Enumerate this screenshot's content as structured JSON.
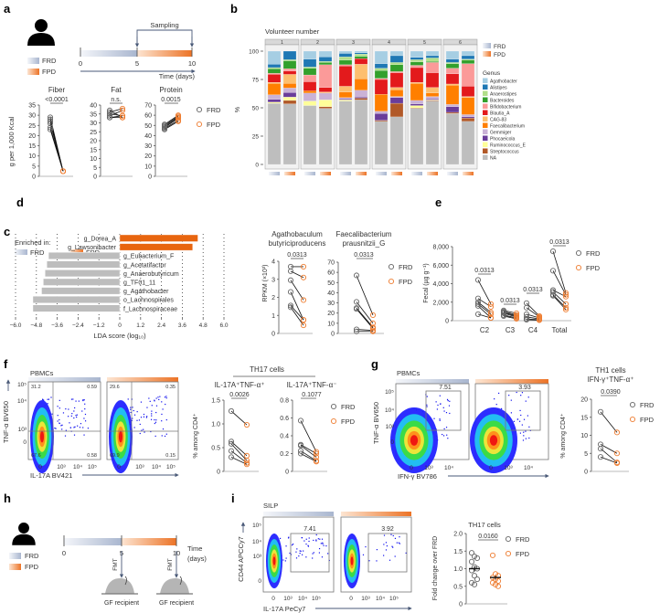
{
  "panel_labels": {
    "a": "a",
    "b": "b",
    "c": "c",
    "d": "d",
    "e": "e",
    "f": "f",
    "g": "g",
    "h": "h",
    "i": "i"
  },
  "legend": {
    "frd": "FRD",
    "fpd": "FPD"
  },
  "colors": {
    "frd_point": "#666666",
    "fpd_point": "#ee7d31",
    "fpd_bar": "#e8650f",
    "frd_bar": "#bdbdbd",
    "axis": "#555555",
    "genus": {
      "Agathobacter": "#a6cee3",
      "Alistipes": "#1f78b4",
      "Anaerostipes": "#b2df8a",
      "Bacteroides": "#33a02c",
      "Bifidobacterium": "#fb9a99",
      "Blautia_A": "#e31a1c",
      "CAG-83": "#fdbf6f",
      "Faecalibacterium": "#ff7f00",
      "Gemmiger": "#cab2d6",
      "Phocaeicola": "#6a3d9a",
      "Ruminococcus_E": "#ffff99",
      "Streptococcus": "#b15928",
      "NA": "#bebebe"
    }
  },
  "panel_a": {
    "sampling": "Sampling",
    "ticks": [
      "0",
      "5",
      "10"
    ],
    "time_label": "Time (days)",
    "ylabel": "g per 1,000 Kcal"
  },
  "panel_c": {
    "enriched_in": "Enriched in:"
  },
  "panel_f": {
    "sample": "PBMCs",
    "xlabel": "IL-17A BV421",
    "ylabel": "TNF-α BV650",
    "xticks": [
      "0",
      "10³",
      "10⁴",
      "10⁵"
    ],
    "yticks": [
      "10⁵",
      "10⁴",
      "10³",
      "0"
    ],
    "frd_quadrants": [
      "31.2",
      "0.59",
      "67.6",
      "0.58"
    ],
    "fpd_quadrants": [
      "29.6",
      "0.35",
      "69.9",
      "0.15"
    ],
    "group_title": "TH17 cells",
    "ylabel_right": "% among CD4⁺"
  },
  "panel_g": {
    "sample": "PBMCs",
    "xlabel": "IFN-γ BV786",
    "ylabel": "TNF-α BV650",
    "xticks": [
      "0",
      "10³",
      "10⁴"
    ],
    "yticks": [
      "10⁵",
      "10⁴",
      "10³",
      "0"
    ],
    "frd_gate": "7.51",
    "fpd_gate": "3.93",
    "ylabel_right": "% among CD4⁺"
  },
  "panel_h": {
    "ticks": [
      "0",
      "5",
      "10"
    ],
    "time_label_1": "Time",
    "time_label_2": "(days)",
    "fmt": "FMT",
    "recipient": "GF recipient"
  },
  "panel_i": {
    "sample": "SILP",
    "xlabel": "IL-17A PeCy7",
    "ylabel": "CD44 APCCy7",
    "xticks": [
      "0",
      "10³",
      "10⁴",
      "10⁵"
    ],
    "yticks": [
      "10⁵",
      "10⁴",
      "10³",
      "0"
    ],
    "frd_gate": "7.41",
    "fpd_gate": "3.92",
    "ylabel_right": "Fold change over FRD"
  },
  "chart_data": [
    {
      "type": "paired-dot",
      "title": [
        "Fiber"
      ],
      "p": "<0.0001",
      "ylim": [
        0,
        35
      ],
      "yticks": [
        0,
        5,
        10,
        15,
        20,
        25,
        30,
        35
      ],
      "ytick_labels": [
        "0",
        "5",
        "10",
        "15",
        "20",
        "25",
        "30",
        "35"
      ],
      "frd": [
        29,
        28,
        27,
        26,
        24,
        23
      ],
      "fpd": [
        2.5,
        2.5,
        2.5,
        2.5,
        2.5,
        2.5
      ]
    },
    {
      "type": "paired-dot",
      "title": [
        "Fat"
      ],
      "p": "n.s.",
      "ylim": [
        0,
        40
      ],
      "yticks": [
        0,
        5,
        10,
        15,
        20,
        25,
        30,
        35,
        40
      ],
      "ytick_labels": [
        "0",
        "5",
        "10",
        "15",
        "20",
        "25",
        "30",
        "35",
        "40"
      ],
      "frd": [
        37,
        36,
        35,
        34,
        33,
        33
      ],
      "fpd": [
        33,
        38,
        34,
        37,
        34,
        33
      ]
    },
    {
      "type": "paired-dot",
      "title": [
        "Protein"
      ],
      "p": "0.0015",
      "ylim": [
        0,
        70
      ],
      "yticks": [
        0,
        10,
        20,
        30,
        40,
        50,
        60,
        70
      ],
      "ytick_labels": [
        "0",
        "10",
        "20",
        "30",
        "40",
        "50",
        "60",
        "70"
      ],
      "frd": [
        51,
        50,
        49,
        48,
        47,
        46
      ],
      "fpd": [
        60,
        59,
        58,
        57,
        55,
        54
      ]
    },
    {
      "type": "bar",
      "stacked": true,
      "title": "Volunteer number",
      "ylabel": "%",
      "ylim": [
        0,
        100
      ],
      "yticks": [
        0,
        25,
        50,
        75,
        100
      ],
      "ytick_labels": [
        "0",
        "25",
        "50",
        "75",
        "100"
      ],
      "legend_title": "Genus",
      "facets": [
        "1",
        "2",
        "3",
        "4",
        "5",
        "6"
      ],
      "genera": [
        "Agathobacter",
        "Alistipes",
        "Anaerostipes",
        "Bacteroides",
        "Bifidobacterium",
        "Blautia_A",
        "CAG-83",
        "Faecalibacterium",
        "Gemmiger",
        "Phocaeicola",
        "Ruminococcus_E",
        "Streptococcus",
        "NA"
      ],
      "bars": [
        {
          "facet": "1",
          "diet": "FRD",
          "values": [
            11.5,
            3,
            1,
            4,
            1,
            7,
            1,
            10,
            4,
            2.5,
            1,
            0,
            54
          ]
        },
        {
          "facet": "1",
          "diet": "FPD",
          "values": [
            0,
            7.5,
            1,
            7,
            2,
            3,
            8,
            4,
            4,
            4,
            3,
            3,
            53.5
          ]
        },
        {
          "facet": "2",
          "diet": "FRD",
          "values": [
            7,
            7,
            1,
            6,
            6,
            8,
            0,
            2,
            7,
            0,
            4,
            0,
            52
          ]
        },
        {
          "facet": "2",
          "diet": "FPD",
          "values": [
            5,
            4,
            1,
            2,
            20,
            4,
            1,
            0,
            6,
            0,
            6,
            1.5,
            49.5
          ]
        },
        {
          "facet": "3",
          "diet": "FRD",
          "values": [
            2,
            3,
            3,
            4,
            1,
            18,
            5,
            5,
            1,
            1,
            1,
            0,
            56
          ]
        },
        {
          "facet": "3",
          "diet": "FPD",
          "values": [
            1.5,
            1,
            2,
            2,
            0,
            5,
            13,
            10,
            6,
            1,
            0,
            1.5,
            57
          ]
        },
        {
          "facet": "4",
          "diet": "FRD",
          "values": [
            11,
            4,
            2,
            7,
            1,
            13,
            0,
            15,
            2,
            6,
            0,
            1,
            38
          ]
        },
        {
          "facet": "4",
          "diet": "FPD",
          "values": [
            4,
            6,
            2,
            6,
            1,
            13,
            2,
            6,
            1,
            5,
            0,
            12,
            42
          ]
        },
        {
          "facet": "5",
          "diet": "FRD",
          "values": [
            5.5,
            2,
            2,
            3,
            2,
            13,
            1,
            15,
            3,
            1.5,
            2,
            0.5,
            49.5
          ]
        },
        {
          "facet": "5",
          "diet": "FPD",
          "values": [
            4,
            2,
            3,
            1,
            9,
            13,
            5,
            3,
            2,
            1,
            0.5,
            0.5,
            56
          ]
        },
        {
          "facet": "6",
          "diet": "FRD",
          "values": [
            7,
            3,
            1,
            4,
            5,
            9,
            1,
            17,
            2,
            5,
            0,
            1,
            45
          ]
        },
        {
          "facet": "6",
          "diet": "FPD",
          "values": [
            4,
            3,
            1,
            3,
            20,
            9,
            1,
            15,
            2,
            1,
            0,
            3,
            38
          ]
        }
      ]
    },
    {
      "type": "bar",
      "orientation": "horizontal",
      "xlabel": "LDA score (log₁₀)",
      "xlim": [
        -6,
        6
      ],
      "xticks": [
        -6,
        -4.8,
        -3.6,
        -2.4,
        -1.2,
        0,
        1.2,
        2.4,
        3.6,
        4.8,
        6
      ],
      "xtick_labels": [
        "−6.0",
        "−4.8",
        "−3.6",
        "−2.4",
        "−1.2",
        "0",
        "1.2",
        "2.4",
        "3.6",
        "4.8",
        "6.0"
      ],
      "categories": [
        "g_Dorea_A",
        "g_Lawsonibacter",
        "g_Eubacterium_F",
        "g_Acetatifactor",
        "g_Anaerobutyricum",
        "g_TF01_11",
        "g_Agathobacter",
        "o_Lachnospirales",
        "f_Lachnospiraceae"
      ],
      "values": [
        4.5,
        4.2,
        -4.1,
        -4.2,
        -4.3,
        -4.4,
        -4.5,
        -5.0,
        -5.0
      ]
    },
    {
      "type": "paired-dot",
      "title": [
        "Agathobaculum",
        "butyriciproducens"
      ],
      "ylabel": "RPKM (×10³)",
      "p": "0.0313",
      "ylim": [
        0,
        4
      ],
      "yticks": [
        0,
        1,
        2,
        3,
        4
      ],
      "ytick_labels": [
        "0",
        "1",
        "2",
        "3",
        "4"
      ],
      "frd": [
        3.7,
        3.45,
        2.95,
        2.3,
        1.55,
        1.45
      ],
      "fpd": [
        3.7,
        3.1,
        1.85,
        0.75,
        0.75,
        0.45
      ]
    },
    {
      "type": "paired-dot",
      "title": [
        "Faecalibacterium",
        "prausnitzii_G"
      ],
      "p": "0.0313",
      "ylim": [
        0,
        70
      ],
      "yticks": [
        0,
        10,
        20,
        30,
        40,
        50,
        60,
        70
      ],
      "ytick_labels": [
        "0",
        "10",
        "20",
        "30",
        "40",
        "50",
        "60",
        "70"
      ],
      "frd": [
        57,
        31,
        25,
        24,
        4,
        2
      ],
      "fpd": [
        18,
        10,
        6,
        5,
        3,
        2
      ]
    },
    {
      "type": "paired-dot",
      "ylabel": "Fecal (µg g⁻¹)",
      "ylim": [
        0,
        8000
      ],
      "yticks": [
        0,
        2000,
        4000,
        6000,
        8000
      ],
      "ytick_labels": [
        "0",
        "2,000",
        "4,000",
        "6,000",
        "8,000"
      ],
      "categories": [
        "C2",
        "C3",
        "C4",
        "Total"
      ],
      "p": [
        "0.0313",
        "0.0313",
        "0.0313",
        "0.0313"
      ],
      "frd": [
        [
          4400,
          2400,
          2000,
          1800,
          1600,
          700
        ],
        [
          1100,
          1000,
          900,
          800,
          600,
          500
        ],
        [
          1900,
          1400,
          700,
          400,
          200,
          100
        ],
        [
          7500,
          5400,
          3300,
          3100,
          2800,
          2700
        ]
      ],
      "fpd": [
        [
          1800,
          1500,
          900,
          700,
          300,
          300
        ],
        [
          800,
          600,
          500,
          400,
          300,
          200
        ],
        [
          500,
          400,
          300,
          200,
          100,
          50
        ],
        [
          3000,
          2800,
          2600,
          1800,
          1400,
          1200
        ]
      ]
    },
    {
      "type": "paired-dot",
      "title": [
        "IL-17A⁺TNF-α⁺"
      ],
      "p": "0.0026",
      "ylim": [
        0,
        1.5
      ],
      "yticks": [
        0,
        0.5,
        1.0,
        1.5
      ],
      "ytick_labels": [
        "0",
        "0.5",
        "1.0",
        "1.5"
      ],
      "frd": [
        1.27,
        0.63,
        0.58,
        0.43,
        0.3
      ],
      "fpd": [
        0.98,
        0.33,
        0.23,
        0.18,
        0.15
      ]
    },
    {
      "type": "paired-dot",
      "title": [
        "IL-17A⁺TNF-α⁻"
      ],
      "p": "0.1077",
      "ylim": [
        0,
        0.8
      ],
      "yticks": [
        0,
        0.2,
        0.4,
        0.6,
        0.8
      ],
      "ytick_labels": [
        "0",
        "0.2",
        "0.4",
        "0.6",
        "0.8"
      ],
      "frd": [
        0.57,
        0.3,
        0.29,
        0.23,
        0.2
      ],
      "fpd": [
        0.22,
        0.2,
        0.16,
        0.12,
        0.11
      ]
    },
    {
      "type": "paired-dot",
      "title": [
        "TH1 cells",
        "IFN-γ⁺TNF-α⁺"
      ],
      "p": "0.0390",
      "ylim": [
        0,
        20
      ],
      "yticks": [
        0,
        5,
        10,
        15,
        20
      ],
      "ytick_labels": [
        "0",
        "5",
        "10",
        "15",
        "20"
      ],
      "frd": [
        16.5,
        7.5,
        6.3,
        4
      ],
      "fpd": [
        10.8,
        5,
        2.5,
        2.3
      ]
    },
    {
      "type": "scatter",
      "title": [
        "TH17 cells"
      ],
      "p": "0.0160",
      "ylim": [
        0,
        2.0
      ],
      "yticks": [
        0,
        0.5,
        1.0,
        1.5,
        2.0
      ],
      "ytick_labels": [
        "0",
        "0.5",
        "1.0",
        "1.5",
        "2.0"
      ],
      "frd": [
        1.45,
        1.35,
        1.3,
        1.2,
        1.05,
        1.0,
        0.95,
        0.8,
        0.7,
        0.6,
        0.55
      ],
      "fpd": [
        1.38,
        0.85,
        0.8,
        0.75,
        0.7,
        0.65,
        0.6,
        0.55,
        0.5
      ],
      "frd_mean": 1.0,
      "fpd_mean": 0.75
    }
  ]
}
